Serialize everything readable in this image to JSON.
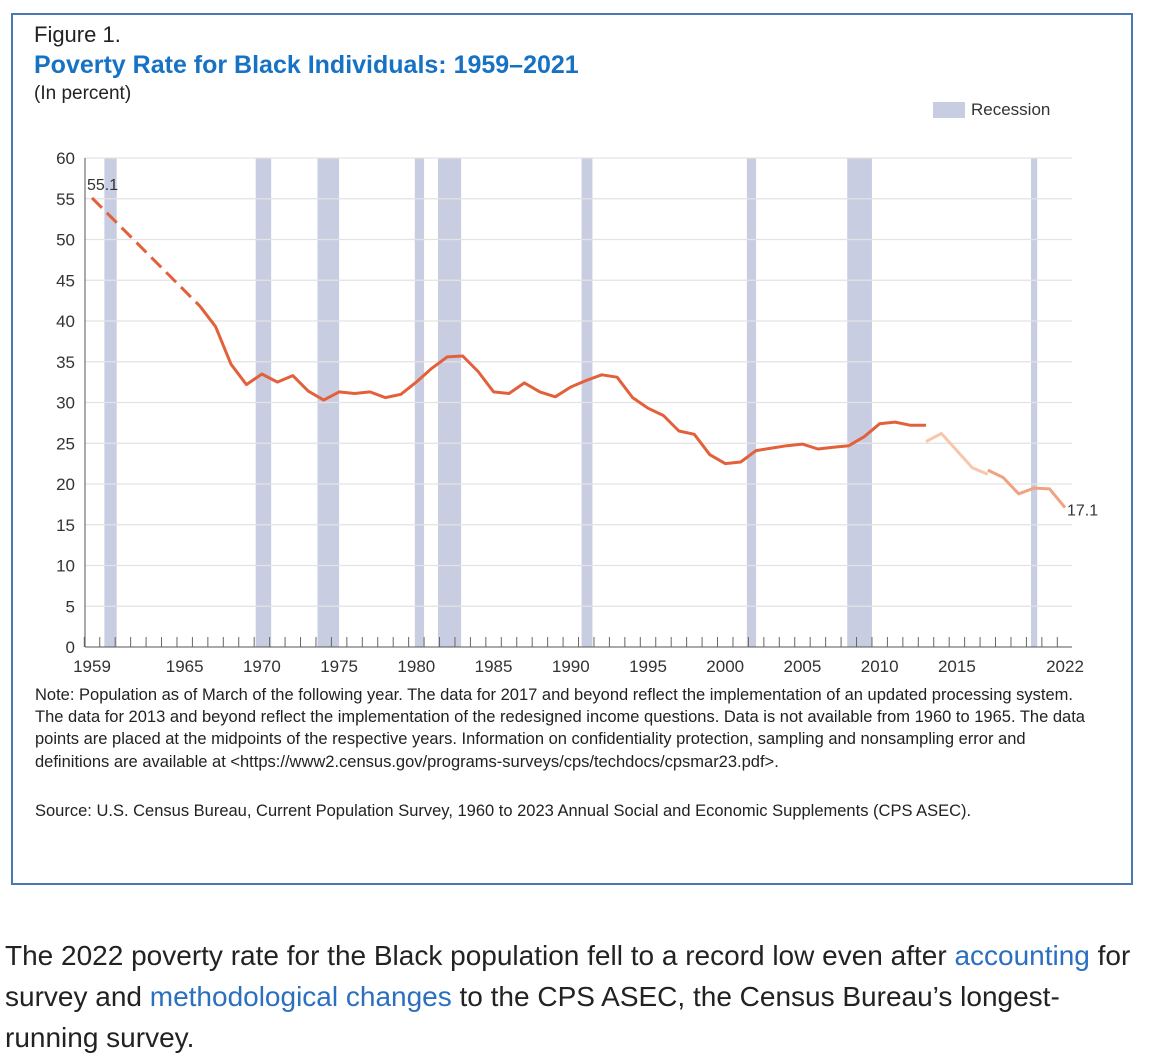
{
  "figure": {
    "number": "Figure 1.",
    "title": "Poverty Rate for Black Individuals: 1959–2021",
    "unit": "(In percent)",
    "legend_recession": "Recession",
    "note": "Note: Population as of March of the following year. The data for 2017 and beyond reflect the implementation of an updated processing system. The data for 2013 and beyond reflect the implementation of the redesigned income questions. Data is not available from 1960 to 1965. The data points are placed at the midpoints of the respective years. Information on confidentiality protection, sampling and nonsampling error and definitions are available at <https://www2.census.gov/programs-surveys/cps/techdocs/cpsmar23.pdf>.",
    "source": "Source: U.S. Census Bureau, Current Population Survey, 1960 to 2023 Annual Social and Economic Supplements (CPS ASEC)."
  },
  "chart_data": {
    "type": "line",
    "title": "Poverty Rate for Black Individuals: 1959–2021",
    "ylabel": "(In percent)",
    "ylim": [
      0,
      60
    ],
    "yticks": [
      0,
      5,
      10,
      15,
      20,
      25,
      30,
      35,
      40,
      45,
      50,
      55,
      60
    ],
    "xlim": [
      1959,
      2022
    ],
    "xticks": [
      1959,
      1965,
      1970,
      1975,
      1980,
      1985,
      1990,
      1995,
      2000,
      2005,
      2010,
      2015,
      2022
    ],
    "grid": true,
    "legend": "top-right",
    "colors": {
      "main": "#e2603a",
      "redesign": "#f8c6aa",
      "processing": "#f0a282",
      "recession": "#c8cde2"
    },
    "recessions": [
      [
        1959.8,
        1960.6
      ],
      [
        1969.6,
        1970.6
      ],
      [
        1973.6,
        1975.0
      ],
      [
        1979.9,
        1980.5
      ],
      [
        1981.4,
        1982.9
      ],
      [
        1990.7,
        1991.4
      ],
      [
        2001.4,
        2002.0
      ],
      [
        2007.9,
        2009.5
      ],
      [
        2019.8,
        2020.2
      ]
    ],
    "segments": [
      {
        "style": "dashed",
        "x": [
          1959,
          1966
        ],
        "y": [
          55.1,
          41.8
        ]
      },
      {
        "style": "main",
        "x": [
          1966,
          1967,
          1968,
          1969,
          1970,
          1971,
          1972,
          1973,
          1974,
          1975,
          1976,
          1977,
          1978,
          1979,
          1980,
          1981,
          1982,
          1983,
          1984,
          1985,
          1986,
          1987,
          1988,
          1989,
          1990,
          1991,
          1992,
          1993,
          1994,
          1995,
          1996,
          1997,
          1998,
          1999,
          2000,
          2001,
          2002,
          2003,
          2004,
          2005,
          2006,
          2007,
          2008,
          2009,
          2010,
          2011,
          2012,
          2013
        ],
        "y": [
          41.8,
          39.3,
          34.7,
          32.2,
          33.5,
          32.5,
          33.3,
          31.4,
          30.3,
          31.3,
          31.1,
          31.3,
          30.6,
          31.0,
          32.5,
          34.2,
          35.6,
          35.7,
          33.8,
          31.3,
          31.1,
          32.4,
          31.3,
          30.7,
          31.9,
          32.7,
          33.4,
          33.1,
          30.6,
          29.3,
          28.4,
          26.5,
          26.1,
          23.6,
          22.5,
          22.7,
          24.1,
          24.4,
          24.7,
          24.9,
          24.3,
          24.5,
          24.7,
          25.8,
          27.4,
          27.6,
          27.2,
          27.2
        ]
      },
      {
        "style": "redesign",
        "x": [
          2013,
          2014,
          2015,
          2016,
          2017
        ],
        "y": [
          25.2,
          26.2,
          24.1,
          22.0,
          21.2
        ]
      },
      {
        "style": "processing",
        "x": [
          2017,
          2018,
          2019,
          2020,
          2021,
          2022
        ],
        "y": [
          21.7,
          20.8,
          18.8,
          19.5,
          19.4,
          17.1
        ]
      }
    ],
    "annotations": [
      {
        "x": 1959,
        "y": 55.1,
        "label": "55.1"
      },
      {
        "x": 2022,
        "y": 17.1,
        "label": "17.1"
      }
    ]
  },
  "paragraph": {
    "part1": "The 2022 poverty rate for the Black population fell to a record low even after ",
    "link1": "accounting",
    "part2": " for survey and ",
    "link2": "methodological changes",
    "part3": " to the CPS ASEC, the Census Bureau’s longest-running survey."
  }
}
